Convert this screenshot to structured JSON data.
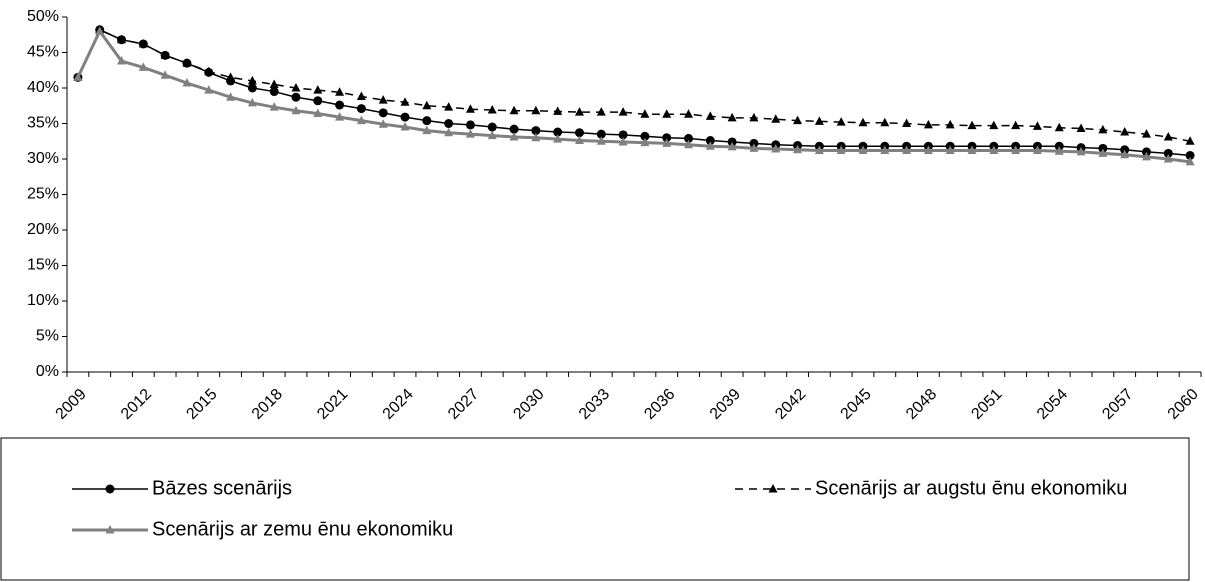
{
  "chart_data": {
    "type": "line",
    "categories": [
      2009,
      null,
      null,
      2012,
      null,
      null,
      2015,
      null,
      null,
      2018,
      null,
      null,
      2021,
      null,
      null,
      2024,
      null,
      null,
      2027,
      null,
      null,
      2030,
      null,
      null,
      2033,
      null,
      null,
      2036,
      null,
      null,
      2039,
      null,
      null,
      2042,
      null,
      null,
      2045,
      null,
      null,
      2048,
      null,
      null,
      2051,
      null,
      null,
      2054,
      null,
      null,
      2057,
      null,
      null,
      2060
    ],
    "series": [
      {
        "name": "Bāzes scenārijs",
        "color": "#000000",
        "marker": "circle",
        "dash": false,
        "values": [
          41.5,
          48.2,
          46.8,
          46.2,
          44.6,
          43.5,
          42.2,
          41.0,
          40.0,
          39.5,
          38.7,
          38.2,
          37.6,
          37.1,
          36.5,
          35.9,
          35.4,
          35.0,
          34.8,
          34.5,
          34.2,
          34.0,
          33.8,
          33.7,
          33.5,
          33.4,
          33.2,
          33.0,
          32.9,
          32.6,
          32.4,
          32.2,
          32.0,
          31.9,
          31.8,
          31.8,
          31.8,
          31.8,
          31.8,
          31.8,
          31.8,
          31.8,
          31.8,
          31.8,
          31.8,
          31.8,
          31.6,
          31.5,
          31.3,
          31.0,
          30.8,
          30.5
        ]
      },
      {
        "name": "Scenārijs ar augstu ēnu ekonomiku",
        "color": "#000000",
        "marker": "triangle",
        "dash": true,
        "values": [
          41.5,
          48.2,
          46.8,
          46.2,
          44.6,
          43.5,
          42.3,
          41.5,
          41.0,
          40.5,
          40.0,
          39.7,
          39.4,
          38.8,
          38.3,
          38.0,
          37.5,
          37.3,
          37.0,
          36.9,
          36.8,
          36.8,
          36.7,
          36.6,
          36.6,
          36.6,
          36.3,
          36.3,
          36.3,
          36.0,
          35.8,
          35.8,
          35.6,
          35.4,
          35.3,
          35.2,
          35.1,
          35.1,
          35.0,
          34.8,
          34.8,
          34.7,
          34.7,
          34.7,
          34.6,
          34.4,
          34.3,
          34.1,
          33.8,
          33.5,
          33.1,
          32.5
        ]
      },
      {
        "name": "Scenārijs ar zemu ēnu ekonomiku",
        "color": "#808080",
        "marker": "triangle",
        "dash": false,
        "values": [
          41.5,
          48.0,
          43.8,
          42.9,
          41.8,
          40.7,
          39.7,
          38.7,
          37.9,
          37.3,
          36.8,
          36.4,
          35.9,
          35.4,
          34.9,
          34.5,
          34.0,
          33.7,
          33.5,
          33.3,
          33.1,
          33.0,
          32.8,
          32.6,
          32.5,
          32.4,
          32.3,
          32.2,
          32.0,
          31.8,
          31.7,
          31.5,
          31.4,
          31.3,
          31.2,
          31.2,
          31.2,
          31.2,
          31.2,
          31.2,
          31.2,
          31.2,
          31.2,
          31.2,
          31.2,
          31.1,
          31.0,
          30.8,
          30.6,
          30.3,
          30.0,
          29.6
        ]
      }
    ],
    "ylim": [
      0,
      50
    ],
    "yticks": [
      {
        "value": 0,
        "label": "0%"
      },
      {
        "value": 5,
        "label": "5%"
      },
      {
        "value": 10,
        "label": "10%"
      },
      {
        "value": 15,
        "label": "15%"
      },
      {
        "value": 20,
        "label": "20%"
      },
      {
        "value": 25,
        "label": "25%"
      },
      {
        "value": 30,
        "label": "30%"
      },
      {
        "value": 35,
        "label": "35%"
      },
      {
        "value": 40,
        "label": "40%"
      },
      {
        "value": 45,
        "label": "45%"
      },
      {
        "value": 50,
        "label": "50%"
      }
    ]
  }
}
